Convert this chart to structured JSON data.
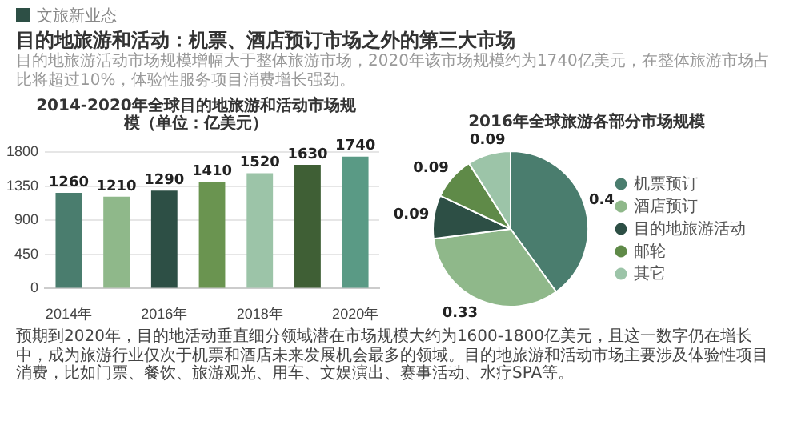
{
  "chart_data": [
    {
      "type": "other",
      "title": "目的地旅游和活动：机票、酒店预订市场之外的第三大市场",
      "subtitle": "目的地旅游活动市场规模增幅大于整体旅游市场，2020年该市场规模约为1740亿美元，在整体旅游市场占比将超过10%，体验性服务项目消费增长强劲。",
      "annotations": [
        "文旅新业态"
      ]
    },
    {
      "type": "bar",
      "title": "2014-2020年全球目的地旅游和活动市场规模（单位：亿美元）",
      "categories": [
        "2014年",
        null,
        "2016年",
        null,
        "2018年",
        null,
        "2020年"
      ],
      "values": [
        1260,
        1210,
        1290,
        1410,
        1520,
        1630,
        1740
      ],
      "colors": [
        "#4a7d6e",
        "#8fb88a",
        "#2d4f45",
        "#6a9450",
        "#9cc4a8",
        "#3f5f35",
        "#5a9a85"
      ],
      "ylim": [
        0,
        1800
      ],
      "yticks": [
        0,
        450,
        900,
        1350,
        1800
      ],
      "grid": "y",
      "data_labels": true
    },
    {
      "type": "pie",
      "title": "2016年全球旅游各部分市场规模",
      "categories": [
        "机票预订",
        "酒店预订",
        "目的地旅游活动",
        "邮轮",
        "其它"
      ],
      "values": [
        0.4,
        0.33,
        0.09,
        0.09,
        0.09
      ],
      "colors": [
        "#4a7d6e",
        "#8fb88a",
        "#2d4f45",
        "#5f8a48",
        "#9cc4a8"
      ],
      "legend": "right",
      "data_labels": true
    },
    {
      "type": "other",
      "annotations": [
        "预期到2020年，目的地活动垂直细分领域潜在市场规模大约为1600-1800亿美元，且这一数字仍在增长中，成为旅游行业仅次于机票和酒店未来发展机会最多的领域。目的地旅游和活动市场主要涉及体验性项目消费，比如门票、餐饮、旅游观光、用车、文娱演出、赛事活动、水疗SPA等。"
      ]
    }
  ]
}
